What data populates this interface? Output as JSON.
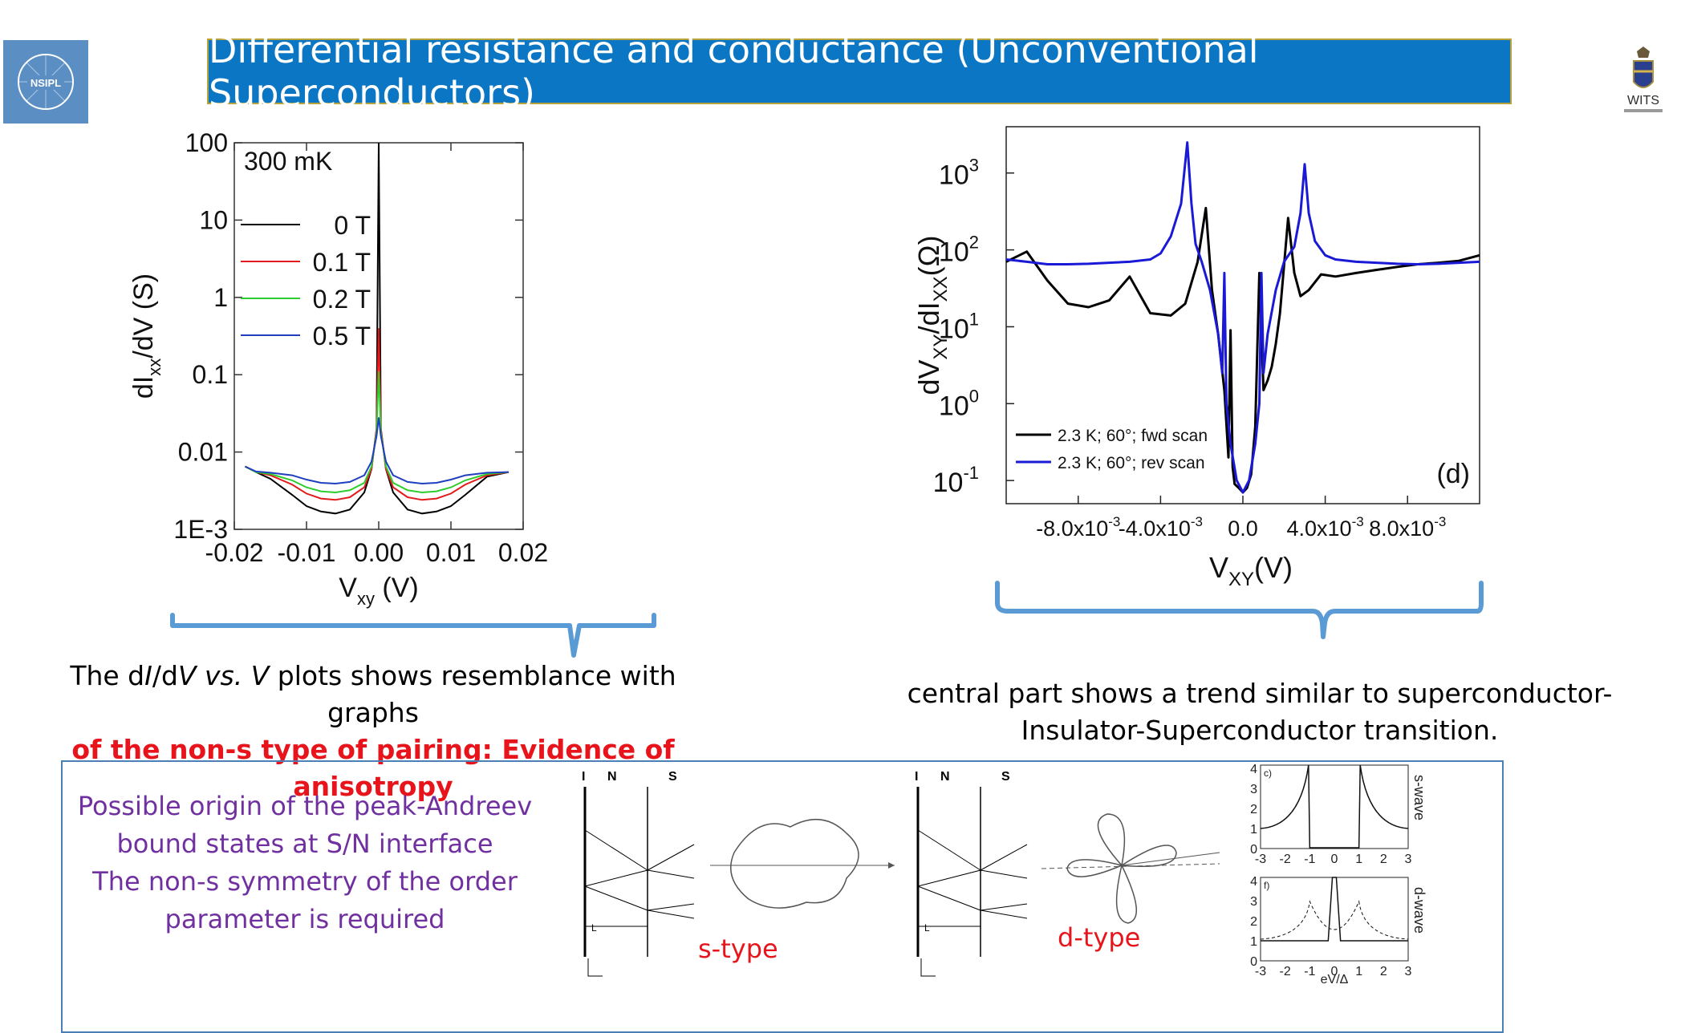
{
  "title": "Differential resistance and conductance (Unconventional Superconductors)",
  "logos": {
    "left": "NSIPL",
    "right": "WITS"
  },
  "chart_data": [
    {
      "type": "line",
      "title": "",
      "annotation": "300 mK",
      "xlabel": "V",
      "xlabel_sub": "xy",
      "xlabel_unit": "(V)",
      "ylabel": "dI",
      "ylabel_sub": "xx",
      "ylabel_rest": "/dV (S)",
      "yscale": "log",
      "xlim": [
        -0.02,
        0.02
      ],
      "ylim": [
        0.001,
        100
      ],
      "xticks": [
        -0.02,
        -0.01,
        0.0,
        0.01,
        0.02
      ],
      "xtick_labels": [
        "-0.02",
        "-0.01",
        "0.00",
        "0.01",
        "0.02"
      ],
      "yticks": [
        0.001,
        0.01,
        0.1,
        1,
        10,
        100
      ],
      "ytick_labels": [
        "1E-3",
        "0.01",
        "0.1",
        "1",
        "10",
        "100"
      ],
      "legend_position": "upper-left",
      "series": [
        {
          "name": "0 T",
          "color": "#000000",
          "x": [
            -0.0185,
            -0.017,
            -0.015,
            -0.012,
            -0.01,
            -0.008,
            -0.006,
            -0.004,
            -0.002,
            -0.001,
            -0.0003,
            0.0,
            0.0003,
            0.001,
            0.002,
            0.004,
            0.006,
            0.008,
            0.01,
            0.012,
            0.015,
            0.018
          ],
          "y": [
            0.0065,
            0.0055,
            0.0045,
            0.0028,
            0.002,
            0.0017,
            0.0016,
            0.0018,
            0.003,
            0.006,
            0.02,
            100,
            0.02,
            0.006,
            0.003,
            0.0018,
            0.0016,
            0.0017,
            0.002,
            0.0028,
            0.0048,
            0.0055
          ]
        },
        {
          "name": "0.1 T",
          "color": "#e31a1c",
          "x": [
            -0.0185,
            -0.017,
            -0.015,
            -0.012,
            -0.01,
            -0.008,
            -0.006,
            -0.004,
            -0.002,
            -0.001,
            -0.0003,
            0.0,
            0.0003,
            0.001,
            0.002,
            0.004,
            0.006,
            0.008,
            0.01,
            0.012,
            0.015,
            0.018
          ],
          "y": [
            0.0065,
            0.0055,
            0.005,
            0.0038,
            0.0029,
            0.0025,
            0.0024,
            0.0026,
            0.0035,
            0.006,
            0.02,
            0.4,
            0.02,
            0.006,
            0.0035,
            0.0026,
            0.0024,
            0.0025,
            0.0029,
            0.0038,
            0.005,
            0.0055
          ]
        },
        {
          "name": "0.2 T",
          "color": "#2ecc2e",
          "x": [
            -0.0185,
            -0.017,
            -0.015,
            -0.012,
            -0.01,
            -0.008,
            -0.006,
            -0.004,
            -0.002,
            -0.001,
            -0.0003,
            0.0,
            0.0003,
            0.001,
            0.002,
            0.004,
            0.006,
            0.008,
            0.01,
            0.012,
            0.015,
            0.018
          ],
          "y": [
            0.0065,
            0.0055,
            0.0052,
            0.0043,
            0.0035,
            0.0031,
            0.003,
            0.0032,
            0.004,
            0.0065,
            0.018,
            0.11,
            0.018,
            0.0065,
            0.004,
            0.0032,
            0.003,
            0.0031,
            0.0035,
            0.0043,
            0.0052,
            0.0055
          ]
        },
        {
          "name": "0.5 T",
          "color": "#1f3fbf",
          "x": [
            -0.0185,
            -0.017,
            -0.015,
            -0.012,
            -0.01,
            -0.008,
            -0.006,
            -0.004,
            -0.002,
            -0.001,
            -0.0003,
            0.0,
            0.0003,
            0.001,
            0.002,
            0.004,
            0.006,
            0.008,
            0.01,
            0.012,
            0.015,
            0.018
          ],
          "y": [
            0.0065,
            0.0056,
            0.0054,
            0.005,
            0.0044,
            0.004,
            0.0039,
            0.0041,
            0.005,
            0.0075,
            0.016,
            0.028,
            0.016,
            0.0075,
            0.005,
            0.0041,
            0.0039,
            0.004,
            0.0044,
            0.005,
            0.0054,
            0.0055
          ]
        }
      ]
    },
    {
      "type": "line",
      "title": "",
      "panel_label": "(d)",
      "xlabel": "V",
      "xlabel_sub": "XY",
      "xlabel_unit": "(V)",
      "ylabel": "dV",
      "ylabel_sub1": "XY",
      "ylabel_mid": "/dI",
      "ylabel_sub2": "XX",
      "ylabel_unit": "(Ω)",
      "yscale": "log",
      "xlim": [
        -0.0115,
        0.0115
      ],
      "ylim": [
        0.05,
        4000
      ],
      "xticks": [
        -0.008,
        -0.004,
        0.0,
        0.004,
        0.008
      ],
      "xtick_labels": [
        "-8.0x10",
        "-4.0x10",
        "0.0",
        "4.0x10",
        "8.0x10"
      ],
      "xtick_exponent": "-3",
      "ytick_exponents": [
        "-1",
        "0",
        "1",
        "2",
        "3"
      ],
      "ytick_base": "10",
      "legend_position": "lower-left",
      "series": [
        {
          "name": "2.3 K; 60°; fwd scan",
          "color": "#000000",
          "x": [
            -0.0115,
            -0.0105,
            -0.0095,
            -0.0085,
            -0.0075,
            -0.0065,
            -0.0055,
            -0.0045,
            -0.0035,
            -0.0028,
            -0.0022,
            -0.0018,
            -0.0015,
            -0.0012,
            -0.0009,
            -0.0007,
            -0.0006,
            -0.0005,
            -0.0004,
            -0.0002,
            0.0,
            0.0002,
            0.0004,
            0.0006,
            0.0008,
            0.001,
            0.0012,
            0.0014,
            0.0016,
            0.0018,
            0.0022,
            0.0025,
            0.0028,
            0.0032,
            0.0038,
            0.0045,
            0.0055,
            0.0065,
            0.0075,
            0.0085,
            0.0095,
            0.0105,
            0.0115
          ],
          "y": [
            70,
            95,
            40,
            20,
            18,
            22,
            45,
            15,
            14,
            20,
            70,
            350,
            30,
            8,
            1.5,
            0.2,
            9,
            0.15,
            0.09,
            0.08,
            0.07,
            0.08,
            0.12,
            0.5,
            50,
            1.5,
            2,
            3,
            6,
            15,
            260,
            50,
            25,
            30,
            48,
            45,
            50,
            55,
            60,
            65,
            68,
            72,
            85
          ]
        },
        {
          "name": "2.3 K; 60°; rev scan",
          "color": "#1a1ad6",
          "x": [
            -0.0115,
            -0.0105,
            -0.0095,
            -0.0085,
            -0.0075,
            -0.0065,
            -0.0055,
            -0.0045,
            -0.004,
            -0.0035,
            -0.003,
            -0.0027,
            -0.0025,
            -0.0023,
            -0.002,
            -0.0016,
            -0.0012,
            -0.001,
            -0.0009,
            -0.0008,
            -0.0006,
            -0.0003,
            0.0,
            0.0003,
            0.0006,
            0.0008,
            0.0009,
            0.001,
            0.0012,
            0.0016,
            0.002,
            0.0025,
            0.0028,
            0.003,
            0.0032,
            0.0035,
            0.004,
            0.0045,
            0.0055,
            0.0065,
            0.0075,
            0.0085,
            0.0095,
            0.0105,
            0.0115
          ],
          "y": [
            75,
            70,
            65,
            65,
            66,
            68,
            70,
            75,
            90,
            150,
            400,
            2500,
            400,
            120,
            70,
            30,
            8,
            2.5,
            50,
            1,
            0.3,
            0.1,
            0.07,
            0.1,
            0.3,
            1,
            50,
            2.5,
            8,
            30,
            70,
            110,
            300,
            1300,
            300,
            130,
            85,
            75,
            70,
            68,
            66,
            65,
            66,
            68,
            70
          ]
        }
      ]
    }
  ],
  "captions": {
    "left_line1_a": "The d",
    "left_line1_b": "I",
    "left_line1_c": "/d",
    "left_line1_d": "V",
    "left_line1_e": " vs. V",
    "left_line1_f": " plots shows resemblance with graphs",
    "left_line2": "of the non-s type of pairing: Evidence of anisotropy",
    "right_line1": "central part shows a trend similar to superconductor-",
    "right_line2": "Insulator-Superconductor transition."
  },
  "bottom_panel": {
    "text_lines": [
      "Possible origin of the peak-Andreev",
      "bound states at S/N interface",
      "The non-s symmetry of the order",
      "parameter is required"
    ],
    "s_type_label": "s-type",
    "d_type_label": "d-type",
    "diagram_labels": {
      "I": "I",
      "N": "N",
      "S": "S",
      "L": "L"
    },
    "mini_plot_top_label": "s-wave",
    "mini_plot_bottom_label": "d-wave",
    "mini_plot_xlabel": "eV/Δ",
    "mini_plot_xticks": [
      "-3",
      "-2",
      "-1",
      "0",
      "1",
      "2",
      "3"
    ],
    "mini_plot_yticks": [
      "0",
      "1",
      "2",
      "3",
      "4"
    ],
    "mini_plot_top_tag": "c)",
    "mini_plot_bottom_tag": "f)"
  }
}
